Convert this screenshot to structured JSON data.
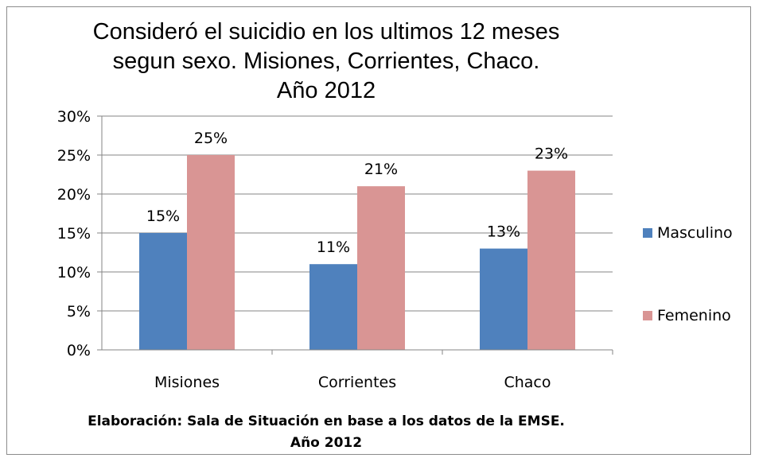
{
  "chart_data": {
    "type": "bar",
    "title_lines": [
      "Consideró el suicidio en los ultimos 12 meses",
      "segun sexo. Misiones, Corrientes, Chaco.",
      "Año 2012"
    ],
    "categories": [
      "Misiones",
      "Corrientes",
      "Chaco"
    ],
    "series": [
      {
        "name": "Masculino",
        "values": [
          15,
          11,
          13
        ],
        "labels": [
          "15%",
          "11%",
          "13%"
        ],
        "color": "#4f81bd"
      },
      {
        "name": "Femenino",
        "values": [
          25,
          21,
          23
        ],
        "labels": [
          "25%",
          "21%",
          "23%"
        ],
        "color": "#d99594"
      }
    ],
    "y_ticks": [
      "0%",
      "5%",
      "10%",
      "15%",
      "20%",
      "25%",
      "30%"
    ],
    "ylim": [
      0,
      30
    ],
    "y_step": 5,
    "grid": true,
    "legend_position": "right",
    "caption_lines": [
      "Elaboración: Sala de Situación en base a los datos de la EMSE.",
      "Año 2012"
    ]
  }
}
